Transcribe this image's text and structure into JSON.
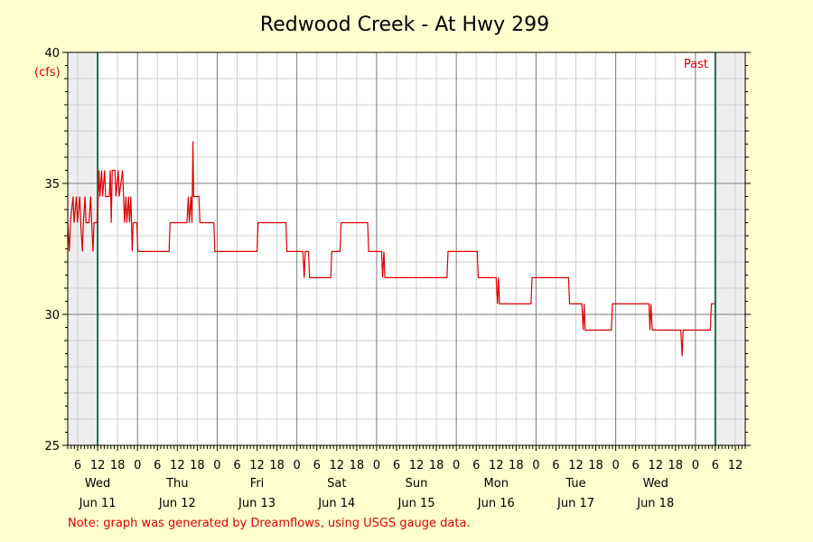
{
  "chart_data": {
    "type": "line",
    "title": "Redwood Creek - At Hwy 299",
    "ylabel": "(cfs)",
    "ylim": [
      25,
      40
    ],
    "y_ticks": [
      25,
      30,
      35,
      40
    ],
    "x_unit": "hours since 2025-06-10 00:00",
    "xlim": [
      3,
      207
    ],
    "hour_tick_labels": [
      "0",
      "6",
      "12",
      "18"
    ],
    "days": [
      {
        "weekday": "Wed",
        "date": "Jun 11",
        "hour": 12
      },
      {
        "weekday": "Thu",
        "date": "Jun 12",
        "hour": 36
      },
      {
        "weekday": "Fri",
        "date": "Jun 13",
        "hour": 60
      },
      {
        "weekday": "Sat",
        "date": "Jun 14",
        "hour": 84
      },
      {
        "weekday": "Sun",
        "date": "Jun 15",
        "hour": 108
      },
      {
        "weekday": "Mon",
        "date": "Jun 16",
        "hour": 132
      },
      {
        "weekday": "Tue",
        "date": "Jun 17",
        "hour": 156
      },
      {
        "weekday": "Wed",
        "date": "Jun 18",
        "hour": 180
      }
    ],
    "shaded_regions": [
      [
        3,
        12
      ],
      [
        198,
        207
      ]
    ],
    "boundary_lines": [
      12,
      198
    ],
    "annotation": "Past",
    "grid": true,
    "series": [
      {
        "color": "#dd0000",
        "points": [
          [
            3.0,
            33.5
          ],
          [
            3.5,
            32.4
          ],
          [
            3.8,
            33.5
          ],
          [
            4.6,
            34.5
          ],
          [
            4.9,
            33.5
          ],
          [
            5.6,
            34.5
          ],
          [
            5.9,
            33.5
          ],
          [
            6.6,
            34.5
          ],
          [
            6.9,
            33.5
          ],
          [
            7.4,
            32.4
          ],
          [
            7.7,
            33.5
          ],
          [
            8.2,
            34.5
          ],
          [
            8.5,
            33.5
          ],
          [
            9.4,
            33.5
          ],
          [
            9.9,
            34.5
          ],
          [
            10.2,
            33.5
          ],
          [
            10.6,
            32.4
          ],
          [
            10.9,
            33.5
          ],
          [
            11.8,
            33.5
          ],
          [
            12.2,
            34.5
          ],
          [
            12.4,
            35.5
          ],
          [
            12.7,
            34.5
          ],
          [
            13.2,
            35.5
          ],
          [
            13.5,
            34.5
          ],
          [
            14.1,
            35.5
          ],
          [
            14.4,
            34.5
          ],
          [
            15.5,
            34.5
          ],
          [
            15.8,
            35.5
          ],
          [
            16.1,
            33.5
          ],
          [
            16.4,
            35.5
          ],
          [
            17.2,
            35.5
          ],
          [
            17.5,
            34.5
          ],
          [
            18.2,
            35.5
          ],
          [
            18.5,
            34.5
          ],
          [
            19.5,
            35.5
          ],
          [
            19.8,
            34.5
          ],
          [
            20.1,
            33.5
          ],
          [
            20.5,
            34.5
          ],
          [
            20.8,
            33.5
          ],
          [
            21.3,
            34.5
          ],
          [
            21.6,
            33.5
          ],
          [
            22.0,
            34.5
          ],
          [
            22.4,
            32.4
          ],
          [
            22.7,
            33.5
          ],
          [
            23.8,
            33.5
          ],
          [
            24.1,
            32.4
          ],
          [
            33.5,
            32.4
          ],
          [
            33.8,
            33.5
          ],
          [
            38.9,
            33.5
          ],
          [
            39.3,
            34.5
          ],
          [
            39.6,
            33.5
          ],
          [
            40.1,
            34.5
          ],
          [
            40.4,
            33.5
          ],
          [
            40.7,
            36.6
          ],
          [
            40.9,
            34.5
          ],
          [
            42.5,
            34.5
          ],
          [
            42.8,
            33.5
          ],
          [
            47.0,
            33.5
          ],
          [
            47.3,
            32.4
          ],
          [
            60.0,
            32.4
          ],
          [
            60.3,
            33.5
          ],
          [
            68.7,
            33.5
          ],
          [
            69.0,
            32.4
          ],
          [
            73.8,
            32.4
          ],
          [
            74.2,
            31.4
          ],
          [
            74.5,
            32.4
          ],
          [
            75.5,
            32.4
          ],
          [
            75.8,
            31.4
          ],
          [
            82.2,
            31.4
          ],
          [
            82.5,
            32.4
          ],
          [
            85.0,
            32.4
          ],
          [
            85.3,
            33.5
          ],
          [
            93.3,
            33.5
          ],
          [
            93.6,
            32.4
          ],
          [
            97.5,
            32.4
          ],
          [
            97.8,
            31.4
          ],
          [
            98.2,
            32.4
          ],
          [
            98.5,
            31.4
          ],
          [
            117.2,
            31.4
          ],
          [
            117.5,
            32.4
          ],
          [
            126.3,
            32.4
          ],
          [
            126.6,
            31.4
          ],
          [
            132.0,
            31.4
          ],
          [
            132.4,
            30.4
          ],
          [
            132.7,
            31.4
          ],
          [
            133.0,
            30.4
          ],
          [
            142.5,
            30.4
          ],
          [
            142.8,
            31.4
          ],
          [
            153.8,
            31.4
          ],
          [
            154.1,
            30.4
          ],
          [
            157.8,
            30.4
          ],
          [
            158.2,
            29.4
          ],
          [
            158.5,
            30.4
          ],
          [
            158.8,
            29.4
          ],
          [
            166.7,
            29.4
          ],
          [
            167.0,
            30.4
          ],
          [
            178.0,
            30.4
          ],
          [
            178.3,
            29.4
          ],
          [
            178.6,
            30.4
          ],
          [
            179.0,
            29.4
          ],
          [
            187.6,
            29.4
          ],
          [
            188.0,
            28.4
          ],
          [
            188.3,
            29.4
          ],
          [
            196.5,
            29.4
          ],
          [
            196.8,
            30.4
          ],
          [
            197.8,
            30.4
          ]
        ]
      }
    ]
  },
  "note": "Note: graph was generated by Dreamflows, using USGS gauge data."
}
